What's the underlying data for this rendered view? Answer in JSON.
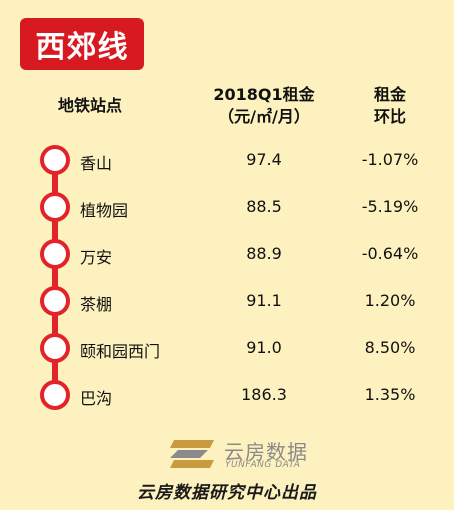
{
  "line_name": "西郊线",
  "header": {
    "station": "地铁站点",
    "rent_line1": "2018Q1租金",
    "rent_line2": "（元/㎡/月）",
    "change_line1": "租金",
    "change_line2": "环比"
  },
  "stations": [
    {
      "name": "香山",
      "rent": "97.4",
      "change": "-1.07%"
    },
    {
      "name": "植物园",
      "rent": "88.5",
      "change": "-5.19%"
    },
    {
      "name": "万安",
      "rent": "88.9",
      "change": "-0.64%"
    },
    {
      "name": "茶棚",
      "rent": "91.1",
      "change": "1.20%"
    },
    {
      "name": "颐和园西门",
      "rent": "91.0",
      "change": "8.50%"
    },
    {
      "name": "巴沟",
      "rent": "186.3",
      "change": "1.35%"
    }
  ],
  "logo": {
    "brand_cn": "云房数据",
    "brand_en": "YUNFANG DATA"
  },
  "footer": {
    "source": "云房数据研究中心出品"
  },
  "colors": {
    "background": "#fdf2bf",
    "line_red": "#e2242a",
    "badge_red": "#d71920",
    "logo_gold": "#c99a3f"
  }
}
